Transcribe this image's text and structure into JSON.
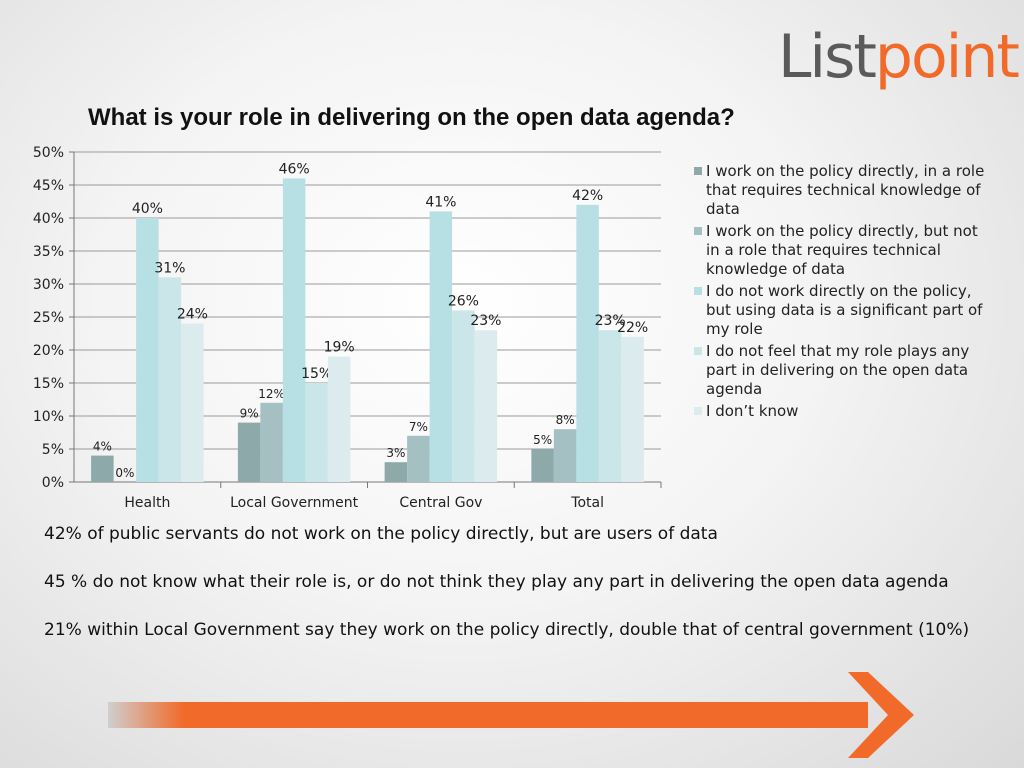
{
  "logo": {
    "part1": "List",
    "part2": "point"
  },
  "title": "What is your role in delivering on the open data agenda?",
  "chart_data": {
    "type": "bar",
    "categories": [
      "Health",
      "Local Government",
      "Central Gov",
      "Total"
    ],
    "ylim": [
      0,
      50
    ],
    "yticks": [
      "0%",
      "5%",
      "10%",
      "15%",
      "20%",
      "25%",
      "30%",
      "35%",
      "40%",
      "45%",
      "50%"
    ],
    "grid": true,
    "legend_position": "right",
    "series": [
      {
        "name": "I work on the policy directly, in a role that requires technical knowledge of data",
        "color": "#8ea9aa",
        "values": [
          4,
          9,
          3,
          5
        ],
        "labels": [
          "4%",
          "9%",
          "3%",
          "5%"
        ]
      },
      {
        "name": "I work on the policy directly, but not in a role that requires technical knowledge of data",
        "color": "#a4c0c2",
        "values": [
          0,
          12,
          7,
          8
        ],
        "labels": [
          "0%",
          "12%",
          "7%",
          "8%"
        ]
      },
      {
        "name": "I do not work directly on the policy, but using data is a significant part of my role",
        "color": "#b7e0e4",
        "values": [
          40,
          46,
          41,
          42
        ],
        "labels": [
          "40%",
          "46%",
          "41%",
          "42%"
        ]
      },
      {
        "name": "I do not feel that my role plays any part in delivering on the open data agenda",
        "color": "#cbe6e8",
        "values": [
          31,
          15,
          26,
          23
        ],
        "labels": [
          "31%",
          "15%",
          "26%",
          "23%"
        ]
      },
      {
        "name": "I don’t know",
        "color": "#dcecee",
        "values": [
          24,
          19,
          23,
          22
        ],
        "labels": [
          "24%",
          "19%",
          "23%",
          "22%"
        ]
      }
    ]
  },
  "notes": [
    "42% of public servants do not work on the policy directly, but are users of data",
    "45 % do not know what their role is, or do not think they play any part in delivering the open data agenda",
    "21% within Local Government say they work on the policy directly, double that of central government (10%)"
  ],
  "arrow": {
    "color": "#f26a2a"
  }
}
